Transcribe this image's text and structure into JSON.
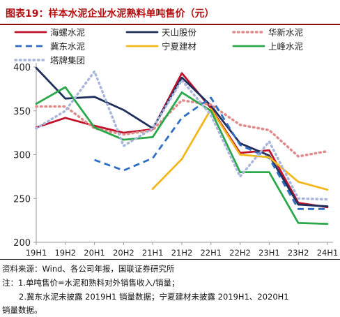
{
  "title": "图表19：样本水泥企业水泥熟料单吨售价（元）",
  "chart_data": {
    "type": "line",
    "title": "图表19：样本水泥企业水泥熟料单吨售价（元）",
    "xlabel": "",
    "ylabel": "",
    "x": [
      "19H1",
      "19H2",
      "20H1",
      "20H2",
      "21H1",
      "21H2",
      "22H1",
      "22H2",
      "23H1",
      "23H2",
      "24H1"
    ],
    "ylim": [
      200,
      400
    ],
    "yticks": [
      200,
      250,
      300,
      350,
      400
    ],
    "grid": false,
    "legend_position": "top",
    "series": [
      {
        "name": "海螺水泥",
        "color": "#c0122b",
        "dash": "solid",
        "values": [
          331,
          342,
          333,
          325,
          329,
          393,
          353,
          302,
          305,
          245,
          240
        ]
      },
      {
        "name": "天山股份",
        "color": "#1f2f5c",
        "dash": "solid",
        "values": [
          399,
          364,
          366,
          351,
          330,
          388,
          356,
          313,
          299,
          243,
          241
        ]
      },
      {
        "name": "华新水泥",
        "color": "#e08a8a",
        "dash": "dotted",
        "values": [
          355,
          355,
          330,
          323,
          328,
          362,
          357,
          334,
          328,
          298,
          304
        ]
      },
      {
        "name": "冀东水泥",
        "color": "#2e6fc4",
        "dash": "dashed",
        "values": [
          null,
          null,
          294,
          282,
          296,
          342,
          365,
          311,
          296,
          238,
          238
        ]
      },
      {
        "name": "宁夏建材",
        "color": "#f2b81b",
        "dash": "solid",
        "values": [
          null,
          null,
          null,
          null,
          261,
          295,
          352,
          300,
          297,
          269,
          260
        ]
      },
      {
        "name": "上峰水泥",
        "color": "#2aa84a",
        "dash": "solid",
        "values": [
          358,
          377,
          331,
          317,
          320,
          371,
          350,
          280,
          280,
          222,
          221
        ]
      },
      {
        "name": "塔牌集团",
        "color": "#a9b6dc",
        "dash": "dotted",
        "values": [
          330,
          350,
          395,
          310,
          330,
          385,
          345,
          275,
          315,
          250,
          249
        ]
      }
    ]
  },
  "footnotes": {
    "source": "资料来源：Wind、各公司年报，国联证券研究所",
    "note1": "注：1.单吨售价=水泥和熟料对外销售收入/销量；",
    "note2": "2.冀东水泥未披露 2019H1 销量数据；宁夏建材未披露 2019H1、2020H1",
    "note3": "销量数据。"
  }
}
